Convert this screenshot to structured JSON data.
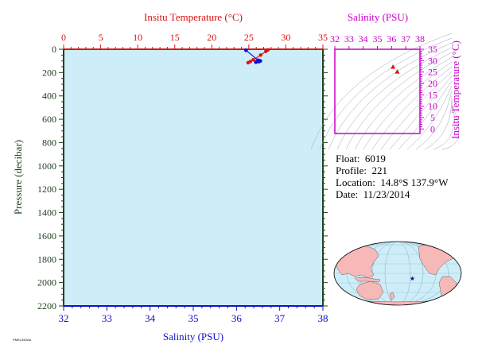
{
  "info": {
    "float_label": "Float:",
    "float_value": "6019",
    "profile_label": "Profile:",
    "profile_value": "221",
    "location_label": "Location:",
    "location_value": "14.8°S  137.9°W",
    "date_label": "Date:",
    "date_value": "11/23/2014"
  },
  "colors": {
    "temperature": "#dd1111",
    "salinity": "#1010cc",
    "ts_diagram": "#cc00cc",
    "pressure_axis": "#224422",
    "plot_bg": "#cdeef8",
    "land": "#f7b8b8",
    "ocean": "#cdeef8"
  },
  "footer_text": "PMEL/NOAA",
  "chart_data": [
    {
      "type": "line",
      "name": "profile",
      "title": "",
      "top_xlabel": "Insitu Temperature (°C)",
      "top_xlim": [
        0,
        35
      ],
      "top_xticks": [
        0,
        5,
        10,
        15,
        20,
        25,
        30,
        35
      ],
      "bottom_xlabel": "Salinity (PSU)",
      "bottom_xlim": [
        32,
        38
      ],
      "bottom_xticks": [
        32,
        33,
        34,
        35,
        36,
        37,
        38
      ],
      "ylabel": "Pressure (decibar)",
      "ylim": [
        2200,
        0
      ],
      "yticks": [
        0,
        200,
        400,
        600,
        800,
        1000,
        1200,
        1400,
        1600,
        1800,
        2000,
        2200
      ],
      "grid": false,
      "series": [
        {
          "name": "temperature",
          "axis": "top",
          "points": [
            [
              27.6,
              5
            ],
            [
              27.3,
              18
            ],
            [
              26.6,
              50
            ],
            [
              25.6,
              90
            ],
            [
              25.2,
              105
            ],
            [
              24.9,
              115
            ]
          ]
        },
        {
          "name": "salinity",
          "axis": "bottom",
          "points": [
            [
              36.22,
              8
            ],
            [
              36.5,
              95
            ],
            [
              36.55,
              100
            ],
            [
              36.45,
              110
            ],
            [
              36.52,
              105
            ]
          ]
        }
      ]
    },
    {
      "type": "scatter",
      "name": "ts_diagram",
      "xlabel": "Salinity (PSU)",
      "xlim": [
        32,
        38
      ],
      "xticks": [
        32,
        33,
        34,
        35,
        36,
        37,
        38
      ],
      "ylabel": "Insitu Temperature (°C)",
      "ylim": [
        -2,
        35
      ],
      "yticks": [
        0,
        5,
        10,
        15,
        20,
        25,
        30,
        35
      ],
      "points": [
        [
          36.1,
          27.3
        ],
        [
          36.4,
          25.2
        ]
      ]
    },
    {
      "type": "map",
      "name": "float_location",
      "marker": {
        "lat": -14.8,
        "lon": -137.9
      }
    }
  ]
}
